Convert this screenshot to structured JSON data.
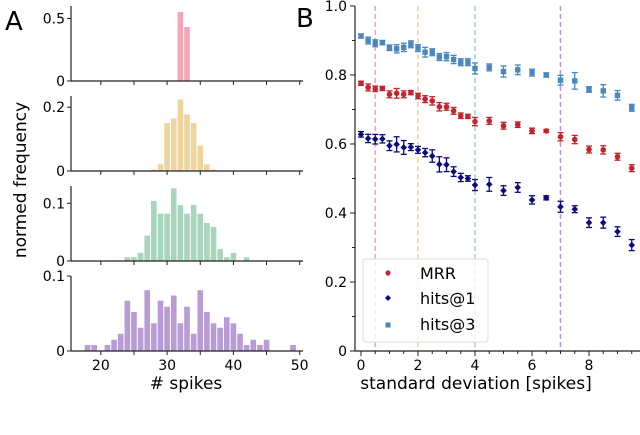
{
  "chart_data": [
    {
      "panel_label": "A",
      "type": "bar",
      "xlabel": "# spikes",
      "ylabel": "normed frequency",
      "xlim": [
        15.5,
        50.5
      ],
      "xticks": [
        20,
        30,
        40,
        50
      ],
      "grid": false,
      "subplots": [
        {
          "color": "#f4a6b6",
          "ylim": [
            0,
            0.6
          ],
          "yticks": [
            0,
            0.5
          ],
          "ytick_labels": [
            "0",
            "0.5"
          ],
          "x": [
            32,
            33
          ],
          "values": [
            0.552,
            0.432
          ]
        },
        {
          "color": "#f0d49d",
          "ylim": [
            0,
            0.235
          ],
          "yticks": [
            0,
            0.2
          ],
          "ytick_labels": [
            "0",
            "0.2"
          ],
          "x": [
            28,
            29,
            30,
            31,
            32,
            33,
            34,
            35,
            36,
            37
          ],
          "values": [
            0.005,
            0.021,
            0.15,
            0.165,
            0.224,
            0.177,
            0.15,
            0.08,
            0.021,
            0.005
          ]
        },
        {
          "color": "#a9d5bd",
          "ylim": [
            0,
            0.13
          ],
          "yticks": [
            0,
            0.1
          ],
          "ytick_labels": [
            "0",
            "0.1"
          ],
          "x": [
            24,
            25,
            26,
            27,
            28,
            29,
            30,
            31,
            32,
            33,
            34,
            35,
            36,
            37,
            38,
            39,
            40,
            42
          ],
          "values": [
            0.0065,
            0.0065,
            0.014,
            0.044,
            0.104,
            0.082,
            0.082,
            0.126,
            0.097,
            0.082,
            0.097,
            0.082,
            0.066,
            0.059,
            0.021,
            0.0065,
            0.014,
            0.0065
          ]
        },
        {
          "color": "#b99bd6",
          "ylim": [
            0,
            0.1
          ],
          "yticks": [
            0,
            0.1
          ],
          "ytick_labels": [
            "0",
            "0.1"
          ],
          "x": [
            18,
            19,
            21,
            22,
            23,
            24,
            25,
            26,
            27,
            28,
            29,
            30,
            31,
            32,
            33,
            34,
            35,
            36,
            37,
            38,
            39,
            40,
            41,
            42,
            43,
            44,
            45,
            49
          ],
          "values": [
            0.008,
            0.008,
            0.008,
            0.015,
            0.023,
            0.067,
            0.052,
            0.031,
            0.081,
            0.037,
            0.067,
            0.059,
            0.074,
            0.037,
            0.059,
            0.023,
            0.081,
            0.052,
            0.037,
            0.031,
            0.045,
            0.037,
            0.023,
            0.008,
            0.015,
            0.008,
            0.015,
            0.008
          ]
        }
      ]
    },
    {
      "panel_label": "B",
      "type": "scatter",
      "xlabel": "standard deviation [spikes]",
      "ylabel": "",
      "xlim": [
        -0.2,
        9.8
      ],
      "ylim": [
        0,
        1.0
      ],
      "xticks": [
        0,
        2,
        4,
        6,
        8
      ],
      "yticks": [
        0,
        0.2,
        0.4,
        0.6,
        0.8,
        1.0
      ],
      "ytick_labels": [
        "0",
        "0.2",
        "0.4",
        "0.6",
        "0.8",
        "1.0"
      ],
      "grid": false,
      "legend_position": "lower-left",
      "vlines": [
        {
          "x": 0.5,
          "color": "#f4a6b6"
        },
        {
          "x": 2,
          "color": "#f0d49d"
        },
        {
          "x": 4,
          "color": "#a9d5bd"
        },
        {
          "x": 7,
          "color": "#b99bd6"
        }
      ],
      "x": [
        0,
        0.25,
        0.5,
        0.75,
        1,
        1.25,
        1.5,
        1.75,
        2,
        2.25,
        2.5,
        2.75,
        3,
        3.25,
        3.5,
        3.75,
        4,
        4.5,
        5,
        5.5,
        6,
        6.5,
        7,
        7.5,
        8,
        8.5,
        9,
        9.5
      ],
      "series": [
        {
          "name": "MRR",
          "color": "#c0272d",
          "marker": "circle",
          "values": [
            0.776,
            0.764,
            0.76,
            0.761,
            0.744,
            0.747,
            0.744,
            0.749,
            0.739,
            0.73,
            0.725,
            0.708,
            0.708,
            0.696,
            0.682,
            0.68,
            0.665,
            0.667,
            0.653,
            0.656,
            0.638,
            0.638,
            0.621,
            0.613,
            0.584,
            0.583,
            0.563,
            0.53
          ],
          "yerr": [
            0.006,
            0.01,
            0.008,
            0.006,
            0.01,
            0.014,
            0.01,
            0.006,
            0.008,
            0.01,
            0.012,
            0.012,
            0.01,
            0.01,
            0.008,
            0.006,
            0.012,
            0.01,
            0.01,
            0.008,
            0.008,
            0.004,
            0.012,
            0.012,
            0.01,
            0.012,
            0.01,
            0.01
          ]
        },
        {
          "name": "hits@1",
          "color": "#0a0a80",
          "marker": "diamond",
          "values": [
            0.628,
            0.616,
            0.614,
            0.615,
            0.595,
            0.599,
            0.59,
            0.591,
            0.583,
            0.575,
            0.565,
            0.541,
            0.54,
            0.52,
            0.503,
            0.5,
            0.481,
            0.483,
            0.465,
            0.474,
            0.438,
            0.444,
            0.418,
            0.411,
            0.372,
            0.372,
            0.346,
            0.307
          ],
          "yerr": [
            0.008,
            0.012,
            0.014,
            0.012,
            0.014,
            0.022,
            0.02,
            0.01,
            0.01,
            0.012,
            0.018,
            0.022,
            0.02,
            0.014,
            0.012,
            0.008,
            0.016,
            0.02,
            0.014,
            0.014,
            0.012,
            0.006,
            0.016,
            0.01,
            0.014,
            0.016,
            0.014,
            0.016
          ]
        },
        {
          "name": "hits@3",
          "color": "#4a87bf",
          "marker": "square",
          "values": [
            0.913,
            0.9,
            0.892,
            0.894,
            0.879,
            0.876,
            0.88,
            0.889,
            0.878,
            0.866,
            0.866,
            0.852,
            0.853,
            0.845,
            0.837,
            0.837,
            0.819,
            0.822,
            0.81,
            0.815,
            0.807,
            0.8,
            0.785,
            0.783,
            0.758,
            0.754,
            0.741,
            0.705
          ]
        },
        {
          "_": "errors for hits@3",
          "yerr": [
            0.006,
            0.01,
            0.01,
            0.006,
            0.008,
            0.012,
            0.012,
            0.01,
            0.01,
            0.014,
            0.01,
            0.01,
            0.012,
            0.012,
            0.01,
            0.01,
            0.016,
            0.01,
            0.016,
            0.014,
            0.01,
            0.006,
            0.014,
            0.024,
            0.008,
            0.018,
            0.014,
            0.01
          ]
        }
      ]
    }
  ]
}
